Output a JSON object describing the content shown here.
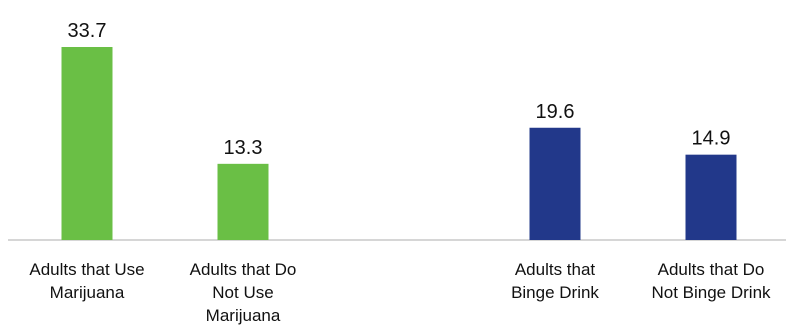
{
  "chart_data": {
    "type": "bar",
    "title": "",
    "xlabel": "",
    "ylabel": "",
    "ylim": [
      0,
      40
    ],
    "grid": false,
    "legend": "none",
    "categories": [
      "Adults that Use Marijuana",
      "Adults that Do Not Use Marijuana",
      "Adults that Binge Drink",
      "Adults that Do Not Binge Drink"
    ],
    "category_label_lines": [
      [
        "Adults that Use",
        "Marijuana"
      ],
      [
        "Adults that Do",
        "Not Use",
        "Marijuana"
      ],
      [
        "Adults that",
        "Binge Drink"
      ],
      [
        "Adults that Do",
        "Not Binge Drink"
      ]
    ],
    "values": [
      33.7,
      13.3,
      19.6,
      14.9
    ],
    "value_labels": [
      "33.7",
      "13.3",
      "19.6",
      "14.9"
    ],
    "groups": [
      "marijuana",
      "marijuana",
      "binge",
      "binge"
    ],
    "colors": {
      "marijuana": "#6abf45",
      "binge": "#22388a",
      "axis": "#c9c9c9"
    }
  }
}
